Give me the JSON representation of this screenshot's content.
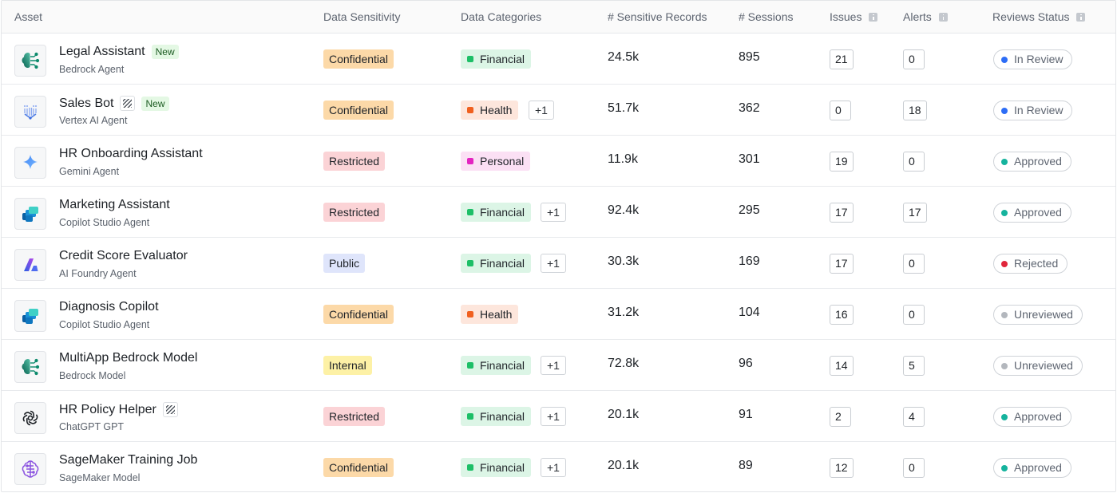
{
  "columns": {
    "asset": "Asset",
    "sensitivity": "Data Sensitivity",
    "categories": "Data Categories",
    "records": "# Sensitive Records",
    "sessions": "# Sessions",
    "issues": "Issues",
    "alerts": "Alerts",
    "reviews": "Reviews Status"
  },
  "colors": {
    "sensitivity": {
      "Confidential": {
        "bg": "#fcd9a8",
        "fg": "#1f2328"
      },
      "Restricted": {
        "bg": "#fbd3d6",
        "fg": "#1f2328"
      },
      "Public": {
        "bg": "#dfe5fb",
        "fg": "#1f2328"
      },
      "Internal": {
        "bg": "#fdf1a6",
        "fg": "#1f2328"
      }
    },
    "category": {
      "Financial": {
        "bg": "#dcf5e6",
        "dot": "#1dbf67"
      },
      "Health": {
        "bg": "#fde6dc",
        "dot": "#f0601f"
      },
      "Personal": {
        "bg": "#fbe0f4",
        "dot": "#e324c0"
      }
    },
    "status": {
      "In Review": "#2d6df6",
      "Approved": "#15b39d",
      "Rejected": "#e0253b",
      "Unreviewed": "#b3b7bd"
    }
  },
  "rows": [
    {
      "name": "Legal Assistant",
      "sub": "Bedrock Agent",
      "icon": "bedrock-icon",
      "hatch": false,
      "new_label": "New",
      "sensitivity": "Confidential",
      "category": "Financial",
      "extra": "",
      "records": "24.5k",
      "sessions": "895",
      "issues": "21",
      "alerts": "0",
      "status": "In Review"
    },
    {
      "name": "Sales Bot",
      "sub": "Vertex AI Agent",
      "icon": "vertex-icon",
      "hatch": true,
      "new_label": "New",
      "sensitivity": "Confidential",
      "category": "Health",
      "extra": "+1",
      "records": "51.7k",
      "sessions": "362",
      "issues": "0",
      "alerts": "18",
      "status": "In Review"
    },
    {
      "name": "HR Onboarding Assistant",
      "sub": "Gemini Agent",
      "icon": "gemini-icon",
      "hatch": false,
      "new_label": "",
      "sensitivity": "Restricted",
      "category": "Personal",
      "extra": "",
      "records": "11.9k",
      "sessions": "301",
      "issues": "19",
      "alerts": "0",
      "status": "Approved"
    },
    {
      "name": "Marketing Assistant",
      "sub": "Copilot Studio Agent",
      "icon": "copilot-studio-icon",
      "hatch": false,
      "new_label": "",
      "sensitivity": "Restricted",
      "category": "Financial",
      "extra": "+1",
      "records": "92.4k",
      "sessions": "295",
      "issues": "17",
      "alerts": "17",
      "status": "Approved"
    },
    {
      "name": "Credit Score Evaluator",
      "sub": "AI Foundry Agent",
      "icon": "ai-foundry-icon",
      "hatch": false,
      "new_label": "",
      "sensitivity": "Public",
      "category": "Financial",
      "extra": "+1",
      "records": "30.3k",
      "sessions": "169",
      "issues": "17",
      "alerts": "0",
      "status": "Rejected"
    },
    {
      "name": "Diagnosis Copilot",
      "sub": "Copilot Studio Agent",
      "icon": "copilot-studio-icon",
      "hatch": false,
      "new_label": "",
      "sensitivity": "Confidential",
      "category": "Health",
      "extra": "",
      "records": "31.2k",
      "sessions": "104",
      "issues": "16",
      "alerts": "0",
      "status": "Unreviewed"
    },
    {
      "name": "MultiApp Bedrock Model",
      "sub": "Bedrock Model",
      "icon": "bedrock-icon",
      "hatch": false,
      "new_label": "",
      "sensitivity": "Internal",
      "category": "Financial",
      "extra": "+1",
      "records": "72.8k",
      "sessions": "96",
      "issues": "14",
      "alerts": "5",
      "status": "Unreviewed"
    },
    {
      "name": "HR Policy Helper",
      "sub": "ChatGPT GPT",
      "icon": "openai-icon",
      "hatch": true,
      "new_label": "",
      "sensitivity": "Restricted",
      "category": "Financial",
      "extra": "+1",
      "records": "20.1k",
      "sessions": "91",
      "issues": "2",
      "alerts": "4",
      "status": "Approved"
    },
    {
      "name": "SageMaker Training Job",
      "sub": "SageMaker Model",
      "icon": "sagemaker-icon",
      "hatch": false,
      "new_label": "",
      "sensitivity": "Confidential",
      "category": "Financial",
      "extra": "+1",
      "records": "20.1k",
      "sessions": "89",
      "issues": "12",
      "alerts": "0",
      "status": "Approved"
    }
  ]
}
